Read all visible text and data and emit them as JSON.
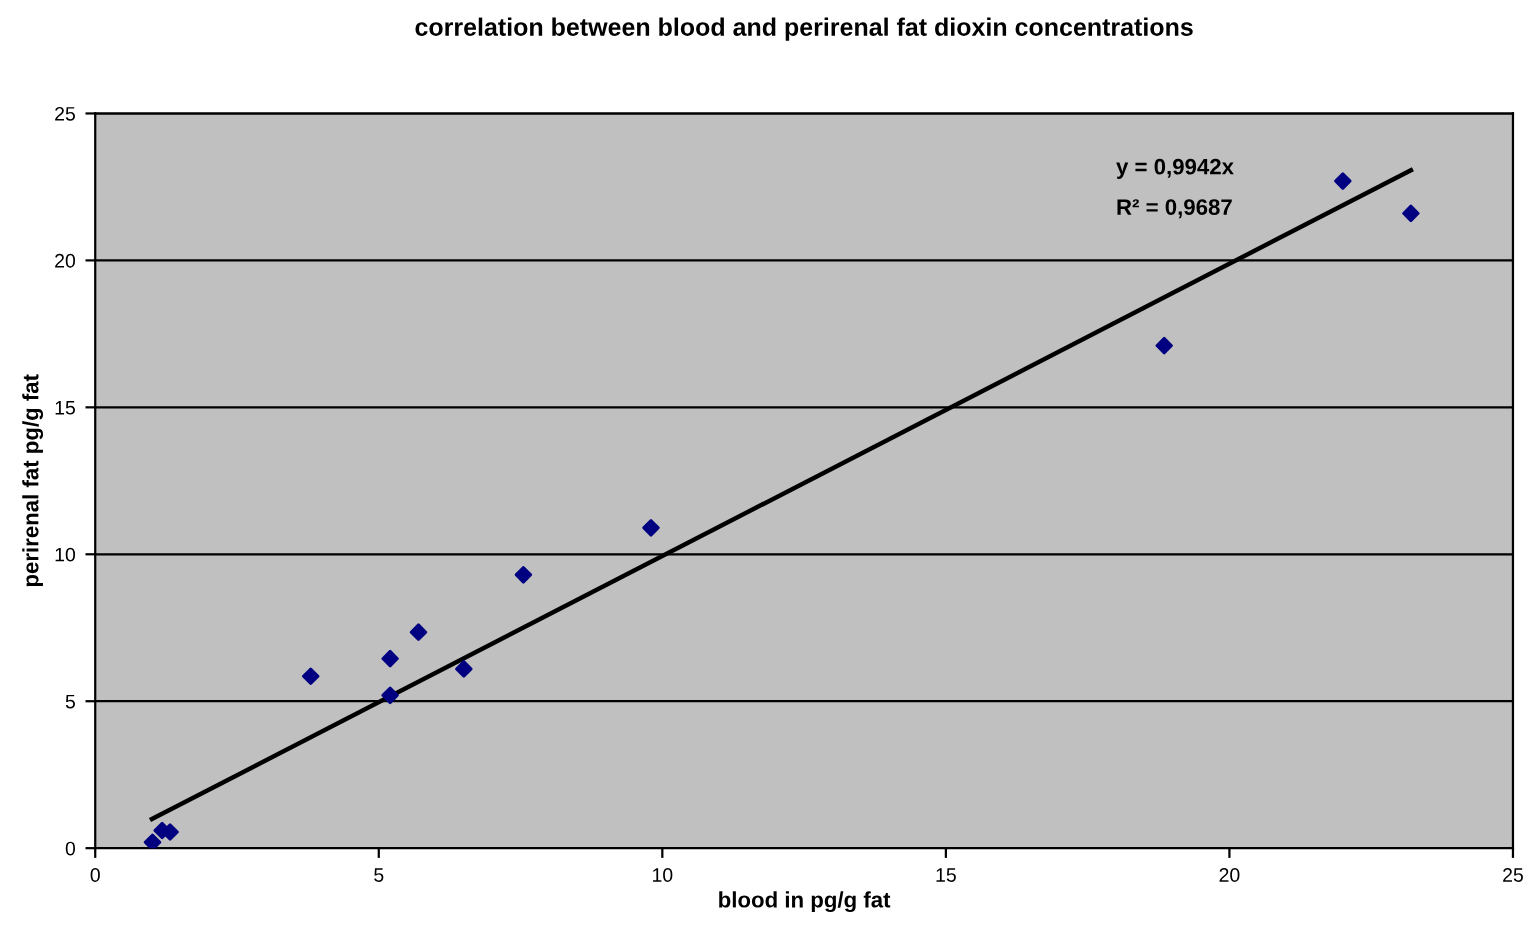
{
  "chart_data": {
    "type": "scatter",
    "title": "correlation between blood and perirenal fat dioxin concentrations",
    "xlabel": "blood in pg/g fat",
    "ylabel": "perirenal fat pg/g fat",
    "xlim": [
      0,
      25
    ],
    "ylim": [
      0,
      25
    ],
    "xticks": [
      0,
      5,
      10,
      15,
      20,
      25
    ],
    "yticks": [
      0,
      5,
      10,
      15,
      20,
      25
    ],
    "grid": "y",
    "legend": false,
    "marker": "diamond",
    "annotations": [
      "y = 0,9942x",
      "R² = 0,9687"
    ],
    "series": [
      {
        "color": "#000080",
        "x": [
          1.01,
          1.18,
          1.32,
          3.8,
          5.2,
          5.2,
          5.7,
          6.5,
          7.55,
          9.8,
          18.85,
          22.0,
          23.2
        ],
        "values": [
          0.2,
          0.6,
          0.55,
          5.85,
          6.45,
          5.2,
          7.35,
          6.1,
          9.3,
          10.9,
          17.1,
          22.7,
          21.6
        ]
      },
      {
        "type": "line",
        "color": "#000000",
        "marker": "none",
        "line_style": "solid",
        "x": [
          1.0,
          23.2
        ],
        "values": [
          0.99,
          23.07
        ]
      }
    ]
  }
}
